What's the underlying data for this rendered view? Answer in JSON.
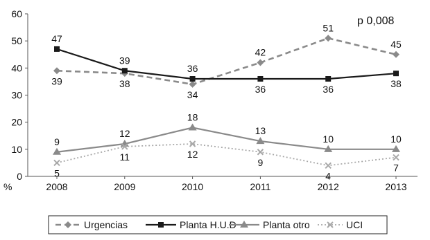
{
  "chart_data": {
    "type": "line",
    "title": "",
    "xlabel": "",
    "ylabel": "%",
    "annotation": "p 0,008",
    "categories": [
      "2008",
      "2009",
      "2010",
      "2011",
      "2012",
      "2013"
    ],
    "ylim": [
      0,
      60
    ],
    "yticks": [
      "0",
      "10",
      "20",
      "30",
      "40",
      "50",
      "60"
    ],
    "grid": false,
    "legend_position": "bottom",
    "series": [
      {
        "name": "Urgencias",
        "values": [
          39,
          38,
          34,
          42,
          51,
          45
        ],
        "labels": [
          "39",
          "38",
          "34",
          "42",
          "51",
          "45"
        ],
        "color": "#8a8a8a",
        "dash": "dashed",
        "marker": "diamond",
        "label_pos": [
          "below",
          "below",
          "below",
          "above",
          "above",
          "above"
        ]
      },
      {
        "name": "Planta H.U.D",
        "values": [
          47,
          39,
          36,
          36,
          36,
          38
        ],
        "labels": [
          "47",
          "39",
          "36",
          "36",
          "36",
          "38"
        ],
        "color": "#1a1a1a",
        "dash": "solid",
        "marker": "square",
        "label_pos": [
          "above",
          "above",
          "above",
          "below",
          "below",
          "below"
        ]
      },
      {
        "name": "Planta otro",
        "values": [
          9,
          12,
          18,
          13,
          10,
          10
        ],
        "labels": [
          "9",
          "12",
          "18",
          "13",
          "10",
          "10"
        ],
        "color": "#8a8a8a",
        "dash": "solid",
        "marker": "triangle",
        "label_pos": [
          "above",
          "above",
          "above",
          "above",
          "above",
          "above"
        ]
      },
      {
        "name": "UCI",
        "values": [
          5,
          11,
          12,
          9,
          4,
          7
        ],
        "labels": [
          "5",
          "11",
          "12",
          "9",
          "4",
          "7"
        ],
        "color": "#a8a8a8",
        "dash": "dotted",
        "marker": "x",
        "label_pos": [
          "below",
          "below",
          "below",
          "below",
          "below",
          "below"
        ]
      }
    ]
  }
}
